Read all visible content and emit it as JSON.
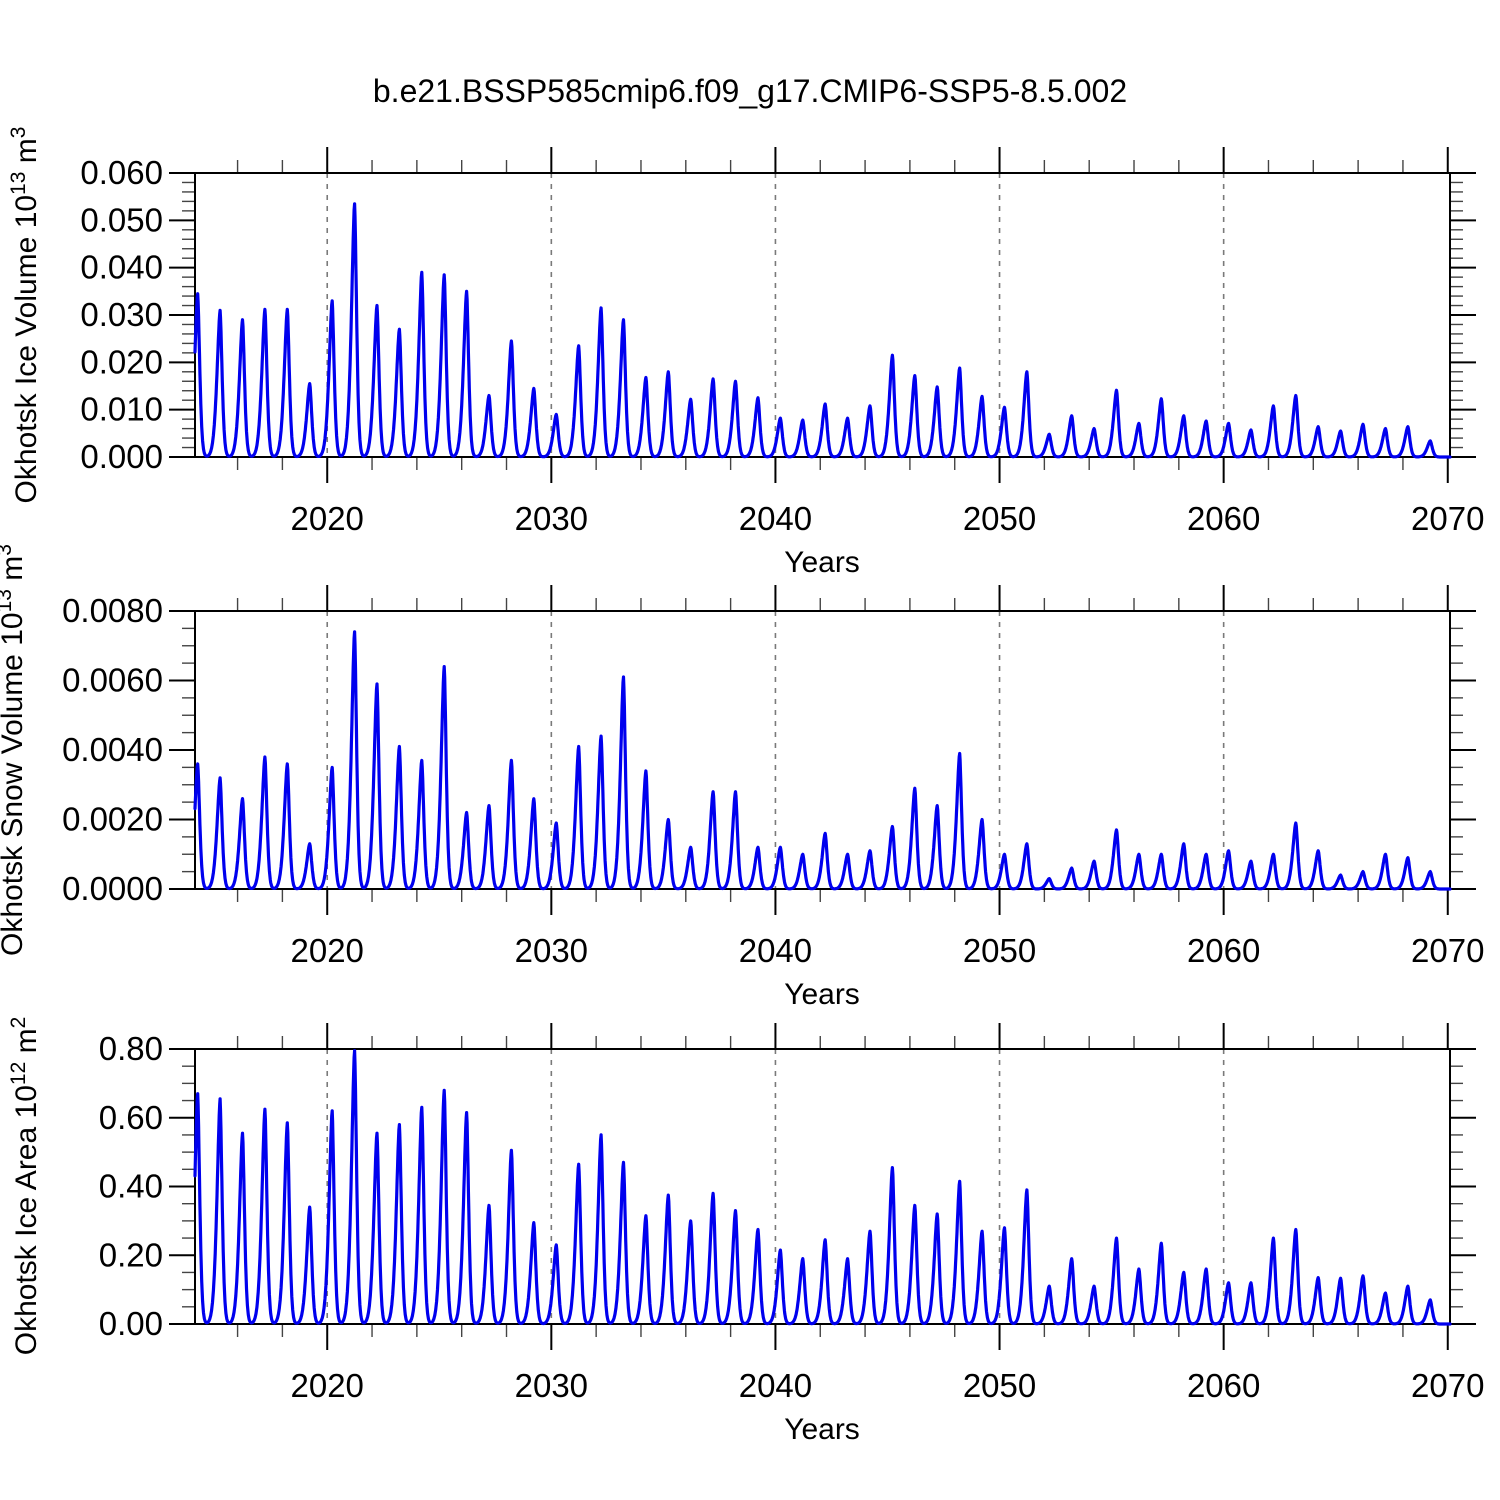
{
  "figure": {
    "title": "b.e21.BSSP585cmip6.f09_g17.CMIP6-SSP5-8.5.002",
    "line_color": "#0000EE",
    "grid_color": "#7a7a7a",
    "frame_color": "#000000",
    "background": "#ffffff"
  },
  "chart_data": [
    {
      "type": "line",
      "name": "okhotsk-ice-volume",
      "ylabel_plain": "Okhotsk Ice Volume 10^13 m^3",
      "ylabel_base": "Okhotsk Ice Volume 10",
      "ylabel_sup1": "13",
      "ylabel_mid": " m",
      "ylabel_sup2": "3",
      "xlabel": "Years",
      "xlim": [
        2014.1,
        2070.1
      ],
      "ylim": [
        0,
        0.06
      ],
      "xticks": [
        2020,
        2030,
        2040,
        2050,
        2060,
        2070
      ],
      "xtick_labels": [
        "2020",
        "2030",
        "2040",
        "2050",
        "2060",
        "2070"
      ],
      "xtick_minor_step": 2,
      "yticks": [
        0,
        0.01,
        0.02,
        0.03,
        0.04,
        0.05,
        0.06
      ],
      "ytick_labels": [
        "0.000",
        "0.010",
        "0.020",
        "0.030",
        "0.040",
        "0.050",
        "0.060"
      ],
      "ytick_minor_step": 0.002,
      "grid_years": [
        2020,
        2030,
        2040,
        2050,
        2060
      ],
      "grid": "vertical-dashed",
      "legend": "none",
      "seasonal_model": {
        "peak_center_offset": 0.22,
        "width_left": 0.2,
        "width_right": 0.13,
        "shape_exponent": 1.6
      },
      "annual_peak_years": [
        2014,
        2015,
        2016,
        2017,
        2018,
        2019,
        2020,
        2021,
        2022,
        2023,
        2024,
        2025,
        2026,
        2027,
        2028,
        2029,
        2030,
        2031,
        2032,
        2033,
        2034,
        2035,
        2036,
        2037,
        2038,
        2039,
        2040,
        2041,
        2042,
        2043,
        2044,
        2045,
        2046,
        2047,
        2048,
        2049,
        2050,
        2051,
        2052,
        2053,
        2054,
        2055,
        2056,
        2057,
        2058,
        2059,
        2060,
        2061,
        2062,
        2063,
        2064,
        2065,
        2066,
        2067,
        2068,
        2069
      ],
      "annual_peak_values": [
        0.0345,
        0.031,
        0.029,
        0.0312,
        0.0312,
        0.0155,
        0.033,
        0.0535,
        0.032,
        0.027,
        0.039,
        0.0385,
        0.035,
        0.013,
        0.0245,
        0.0145,
        0.009,
        0.0235,
        0.0315,
        0.029,
        0.0168,
        0.018,
        0.0122,
        0.0165,
        0.016,
        0.0125,
        0.0082,
        0.0078,
        0.0112,
        0.0082,
        0.0108,
        0.0215,
        0.0172,
        0.0148,
        0.0188,
        0.0128,
        0.0105,
        0.018,
        0.0048,
        0.0087,
        0.006,
        0.0141,
        0.0071,
        0.0123,
        0.0087,
        0.0076,
        0.0071,
        0.0057,
        0.0108,
        0.013,
        0.0064,
        0.0055,
        0.0069,
        0.006,
        0.0064,
        0.0034
      ]
    },
    {
      "type": "line",
      "name": "okhotsk-snow-volume",
      "ylabel_plain": "Okhotsk Snow Volume 10^13 m^3",
      "ylabel_base": "Okhotsk Snow Volume 10",
      "ylabel_sup1": "13",
      "ylabel_mid": " m",
      "ylabel_sup2": "3",
      "xlabel": "Years",
      "xlim": [
        2014.1,
        2070.1
      ],
      "ylim": [
        0,
        0.008
      ],
      "xticks": [
        2020,
        2030,
        2040,
        2050,
        2060,
        2070
      ],
      "xtick_labels": [
        "2020",
        "2030",
        "2040",
        "2050",
        "2060",
        "2070"
      ],
      "xtick_minor_step": 2,
      "yticks": [
        0,
        0.002,
        0.004,
        0.006,
        0.008
      ],
      "ytick_labels": [
        "0.0000",
        "0.0020",
        "0.0040",
        "0.0060",
        "0.0080"
      ],
      "ytick_minor_step": 0.0005,
      "grid_years": [
        2020,
        2030,
        2040,
        2050,
        2060
      ],
      "grid": "vertical-dashed",
      "legend": "none",
      "seasonal_model": {
        "peak_center_offset": 0.22,
        "width_left": 0.2,
        "width_right": 0.13,
        "shape_exponent": 1.6
      },
      "annual_peak_years": [
        2014,
        2015,
        2016,
        2017,
        2018,
        2019,
        2020,
        2021,
        2022,
        2023,
        2024,
        2025,
        2026,
        2027,
        2028,
        2029,
        2030,
        2031,
        2032,
        2033,
        2034,
        2035,
        2036,
        2037,
        2038,
        2039,
        2040,
        2041,
        2042,
        2043,
        2044,
        2045,
        2046,
        2047,
        2048,
        2049,
        2050,
        2051,
        2052,
        2053,
        2054,
        2055,
        2056,
        2057,
        2058,
        2059,
        2060,
        2061,
        2062,
        2063,
        2064,
        2065,
        2066,
        2067,
        2068,
        2069
      ],
      "annual_peak_values": [
        0.0036,
        0.0032,
        0.0026,
        0.0038,
        0.0036,
        0.0013,
        0.0035,
        0.0074,
        0.0059,
        0.0041,
        0.0037,
        0.0064,
        0.0022,
        0.0024,
        0.0037,
        0.0026,
        0.0019,
        0.0041,
        0.0044,
        0.0061,
        0.0034,
        0.002,
        0.0012,
        0.0028,
        0.0028,
        0.0012,
        0.0012,
        0.001,
        0.0016,
        0.001,
        0.0011,
        0.0018,
        0.0029,
        0.0024,
        0.0039,
        0.002,
        0.001,
        0.0013,
        0.0003,
        0.0006,
        0.0008,
        0.0017,
        0.001,
        0.001,
        0.0013,
        0.001,
        0.0011,
        0.0008,
        0.001,
        0.0019,
        0.0011,
        0.0004,
        0.0005,
        0.001,
        0.0009,
        0.0005
      ]
    },
    {
      "type": "line",
      "name": "okhotsk-ice-area",
      "ylabel_plain": "Okhotsk Ice Area 10^12 m^2",
      "ylabel_base": "Okhotsk Ice Area 10",
      "ylabel_sup1": "12",
      "ylabel_mid": " m",
      "ylabel_sup2": "2",
      "xlabel": "Years",
      "xlim": [
        2014.1,
        2070.1
      ],
      "ylim": [
        0,
        0.8
      ],
      "xticks": [
        2020,
        2030,
        2040,
        2050,
        2060,
        2070
      ],
      "xtick_labels": [
        "2020",
        "2030",
        "2040",
        "2050",
        "2060",
        "2070"
      ],
      "xtick_minor_step": 2,
      "yticks": [
        0,
        0.2,
        0.4,
        0.6,
        0.8
      ],
      "ytick_labels": [
        "0.00",
        "0.20",
        "0.40",
        "0.60",
        "0.80"
      ],
      "ytick_minor_step": 0.05,
      "grid_years": [
        2020,
        2030,
        2040,
        2050,
        2060
      ],
      "grid": "vertical-dashed",
      "legend": "none",
      "seasonal_model": {
        "peak_center_offset": 0.22,
        "width_left": 0.2,
        "width_right": 0.13,
        "shape_exponent": 1.6
      },
      "annual_peak_years": [
        2014,
        2015,
        2016,
        2017,
        2018,
        2019,
        2020,
        2021,
        2022,
        2023,
        2024,
        2025,
        2026,
        2027,
        2028,
        2029,
        2030,
        2031,
        2032,
        2033,
        2034,
        2035,
        2036,
        2037,
        2038,
        2039,
        2040,
        2041,
        2042,
        2043,
        2044,
        2045,
        2046,
        2047,
        2048,
        2049,
        2050,
        2051,
        2052,
        2053,
        2054,
        2055,
        2056,
        2057,
        2058,
        2059,
        2060,
        2061,
        2062,
        2063,
        2064,
        2065,
        2066,
        2067,
        2068,
        2069
      ],
      "annual_peak_values": [
        0.67,
        0.655,
        0.555,
        0.625,
        0.585,
        0.34,
        0.62,
        0.795,
        0.555,
        0.58,
        0.63,
        0.68,
        0.615,
        0.345,
        0.505,
        0.295,
        0.23,
        0.465,
        0.55,
        0.47,
        0.315,
        0.375,
        0.3,
        0.38,
        0.33,
        0.275,
        0.215,
        0.19,
        0.245,
        0.19,
        0.27,
        0.455,
        0.345,
        0.32,
        0.415,
        0.27,
        0.28,
        0.39,
        0.11,
        0.19,
        0.11,
        0.25,
        0.16,
        0.235,
        0.15,
        0.16,
        0.12,
        0.12,
        0.25,
        0.275,
        0.135,
        0.133,
        0.14,
        0.09,
        0.11,
        0.07
      ]
    }
  ]
}
